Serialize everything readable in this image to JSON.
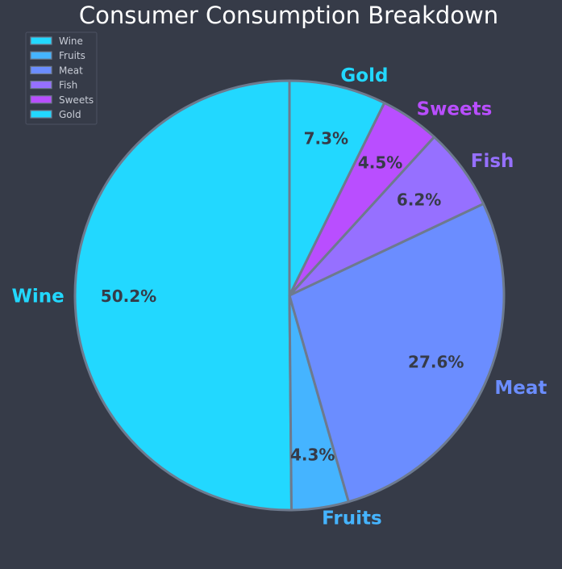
{
  "chart_data": {
    "type": "pie",
    "title": "Consumer Consumption Breakdown",
    "categories": [
      "Wine",
      "Fruits",
      "Meat",
      "Fish",
      "Sweets",
      "Gold"
    ],
    "values": [
      50.2,
      4.3,
      27.6,
      6.2,
      4.5,
      7.3
    ],
    "percent_labels": [
      "50.2%",
      "4.3%",
      "27.6%",
      "6.2%",
      "4.5%",
      "7.3%"
    ],
    "colors": [
      "#22d8ff",
      "#45b4ff",
      "#6b8dff",
      "#9670ff",
      "#b94eff",
      "#22d8ff"
    ],
    "edge_color": "#6d7a8e",
    "background": "#363b48",
    "start_angle_deg": 90,
    "direction": "counterclockwise",
    "legend": {
      "placement": "top-left",
      "entries": [
        "Wine",
        "Fruits",
        "Meat",
        "Fish",
        "Sweets",
        "Gold"
      ]
    }
  }
}
